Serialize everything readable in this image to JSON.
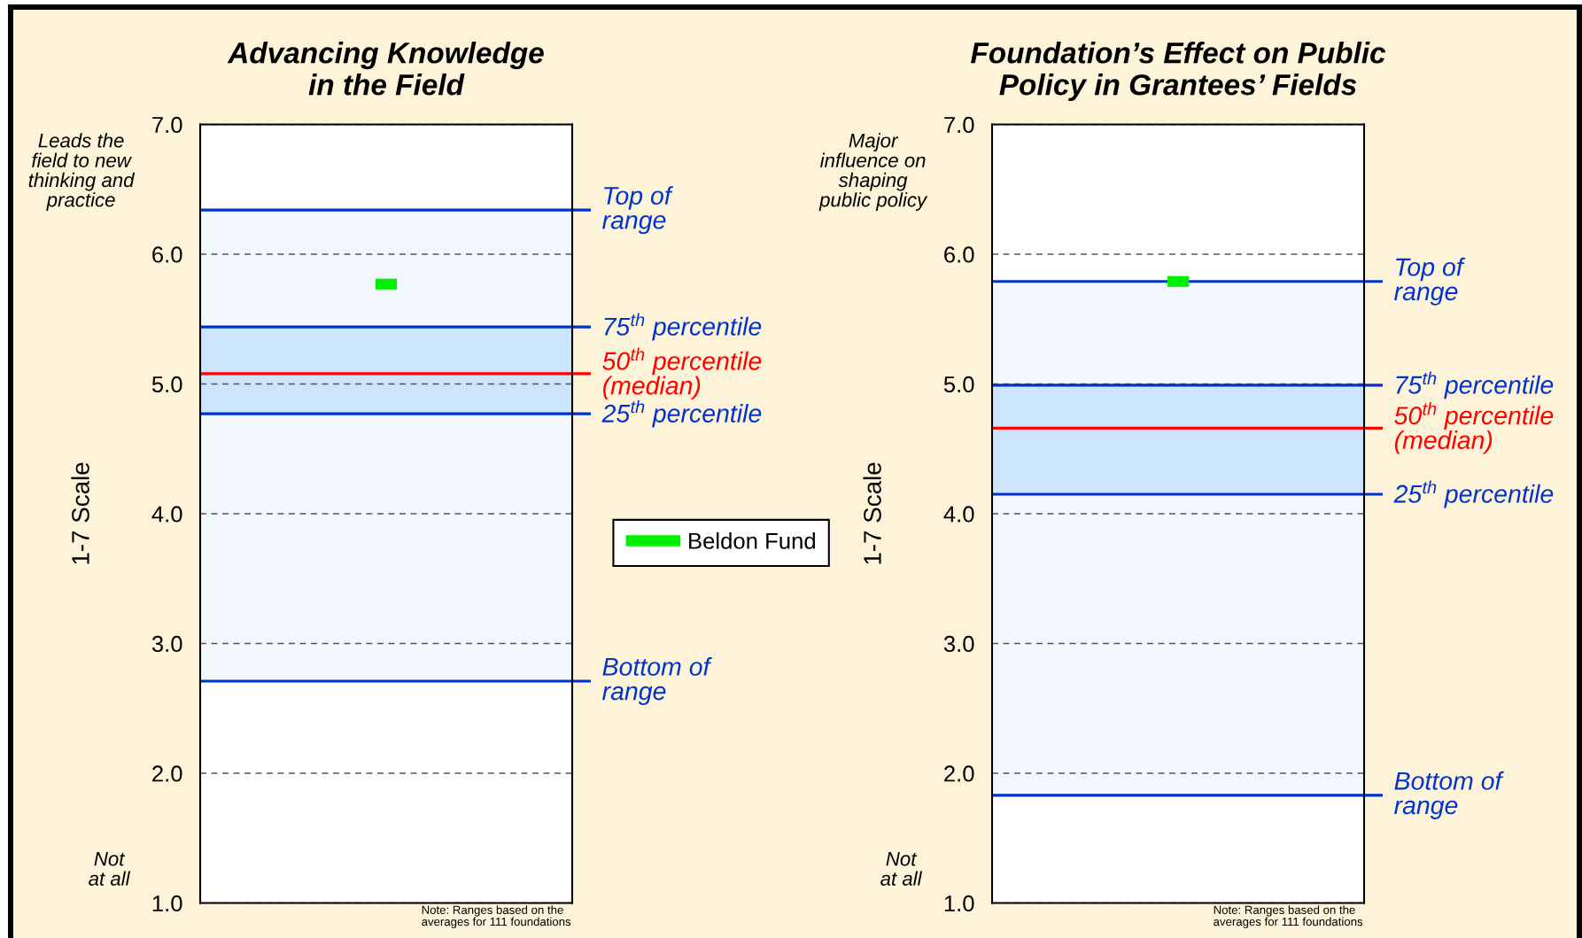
{
  "chart_data": [
    {
      "type": "scatter",
      "title": "Advancing Knowledge\nin the Field",
      "ylabel": "1-7 Scale",
      "categories": [
        null
      ],
      "series": [
        {
          "name": "Beldon Fund",
          "color": "#00f000",
          "values": [
            5.77
          ]
        }
      ],
      "ylim": [
        1,
        7
      ],
      "yticks": [
        {
          "value": 1,
          "label": "1.0"
        },
        {
          "value": 2,
          "label": "2.0"
        },
        {
          "value": 3,
          "label": "3.0"
        },
        {
          "value": 4,
          "label": "4.0"
        },
        {
          "value": 5,
          "label": "5.0"
        },
        {
          "value": 6,
          "label": "6.0"
        },
        {
          "value": 7,
          "label": "7.0"
        }
      ],
      "grid": "y",
      "legend": "right",
      "tick_labels": "y",
      "bands": [
        {
          "axis": "y",
          "from": 2.71,
          "to": 6.34,
          "color": "#f2f7fe"
        },
        {
          "axis": "y",
          "from": 4.77,
          "to": 5.44,
          "color": "#cce4fc"
        }
      ],
      "ref_lines": [
        {
          "axis": "y",
          "value": 6.34,
          "label": "Top of\nrange",
          "color": "#0033cc"
        },
        {
          "axis": "y",
          "value": 5.44,
          "label": "75$^{th}$ percentile",
          "color": "#0033cc"
        },
        {
          "axis": "y",
          "value": 5.08,
          "label": "50$^{th}$ percentile\n(median)",
          "color": "#ff0000"
        },
        {
          "axis": "y",
          "value": 4.77,
          "label": "25$^{th}$ percentile",
          "color": "#0033cc"
        },
        {
          "axis": "y",
          "value": 2.71,
          "label": "Bottom of\nrange",
          "color": "#0033cc"
        }
      ],
      "annotations": [
        "Leads the\nfield to new\nthinking and\npractice",
        "Not\nat all",
        "Note: Ranges based on the\naverages for 111 foundations"
      ]
    },
    {
      "type": "scatter",
      "title": "Foundation’s Effect on Public\nPolicy in Grantees’ Fields",
      "ylabel": "1-7 Scale",
      "categories": [
        null
      ],
      "series": [
        {
          "color": "#00f000",
          "values": [
            5.79
          ]
        }
      ],
      "ylim": [
        1,
        7
      ],
      "yticks": [
        {
          "value": 1,
          "label": "1.0"
        },
        {
          "value": 2,
          "label": "2.0"
        },
        {
          "value": 3,
          "label": "3.0"
        },
        {
          "value": 4,
          "label": "4.0"
        },
        {
          "value": 5,
          "label": "5.0"
        },
        {
          "value": 6,
          "label": "6.0"
        },
        {
          "value": 7,
          "label": "7.0"
        }
      ],
      "grid": "y",
      "tick_labels": "y",
      "bands": [
        {
          "axis": "y",
          "from": 1.83,
          "to": 5.79,
          "color": "#f2f7fe"
        },
        {
          "axis": "y",
          "from": 4.15,
          "to": 4.99,
          "color": "#cce4fc"
        }
      ],
      "ref_lines": [
        {
          "axis": "y",
          "value": 5.79,
          "label": "Top of\nrange",
          "color": "#0033cc"
        },
        {
          "axis": "y",
          "value": 4.99,
          "label": "75$^{th}$ percentile",
          "color": "#0033cc"
        },
        {
          "axis": "y",
          "value": 4.66,
          "label": "50$^{th}$ percentile\n(median)",
          "color": "#ff0000"
        },
        {
          "axis": "y",
          "value": 4.15,
          "label": "25$^{th}$ percentile",
          "color": "#0033cc"
        },
        {
          "axis": "y",
          "value": 1.83,
          "label": "Bottom of\nrange",
          "color": "#0033cc"
        }
      ],
      "annotations": [
        "Major\ninfluence on\nshaping\npublic policy",
        "Not\nat all",
        "Note: Ranges based on the\naverages for 111 foundations"
      ]
    }
  ]
}
